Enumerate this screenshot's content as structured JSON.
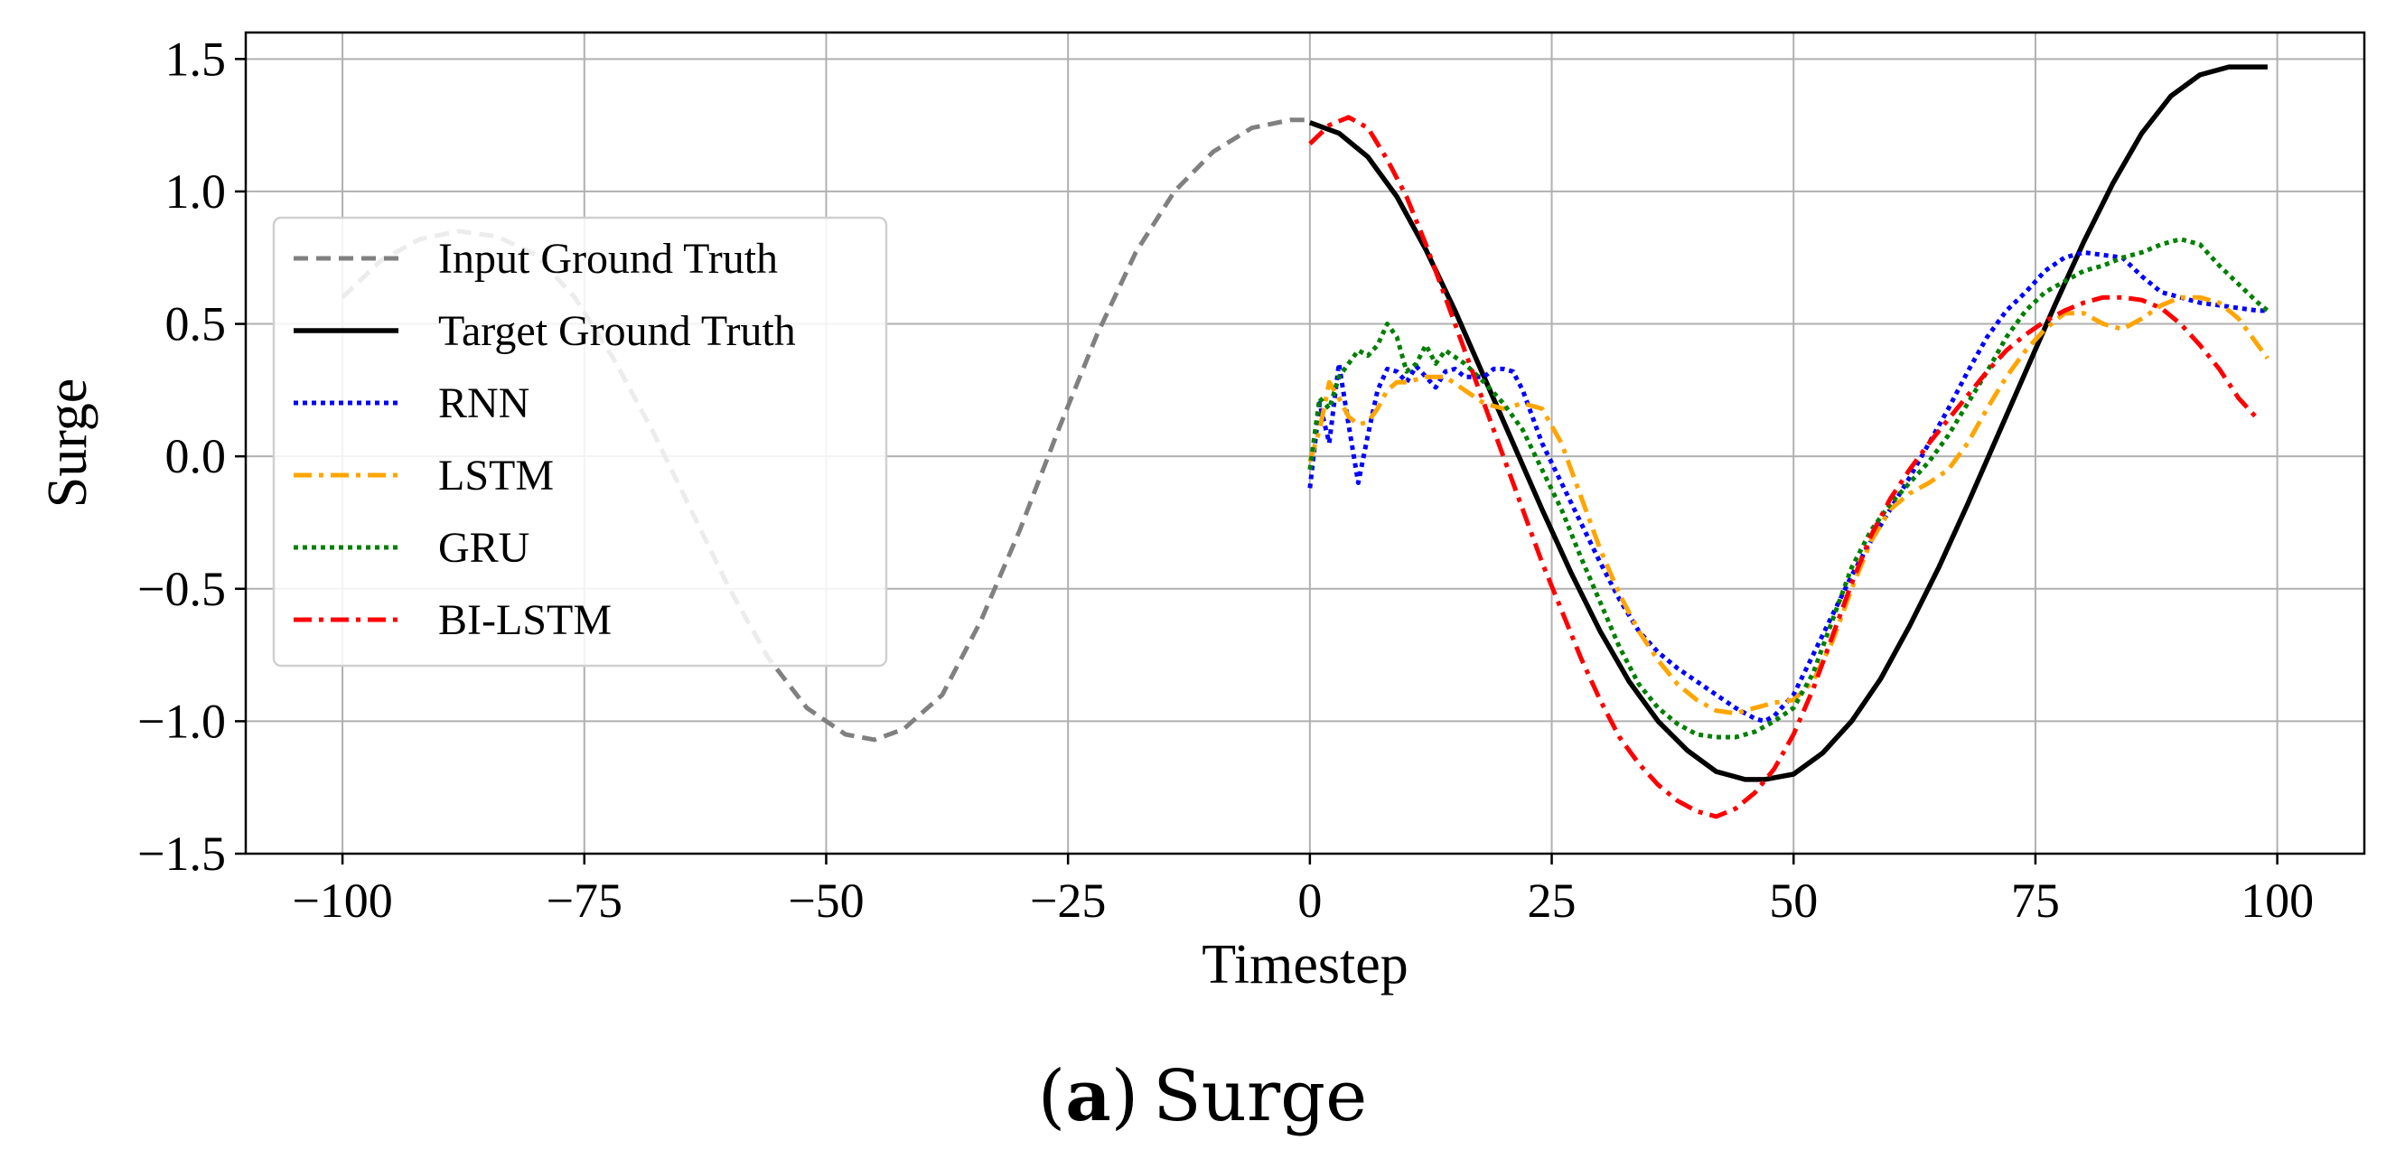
{
  "chart_data": {
    "type": "line",
    "xlabel": "Timestep",
    "ylabel": "Surge",
    "xlim": [
      -110,
      109
    ],
    "ylim": [
      -1.5,
      1.6
    ],
    "xticks": [
      -100,
      -75,
      -50,
      -25,
      0,
      25,
      50,
      75,
      100
    ],
    "yticks": [
      -1.5,
      -1.0,
      -0.5,
      0.0,
      0.5,
      1.0,
      1.5
    ],
    "grid": true,
    "legend_position": "center-left",
    "series": [
      {
        "name": "Input Ground Truth",
        "color": "#808080",
        "style": "dashed",
        "x": [
          -100,
          -96,
          -92,
          -88,
          -84,
          -80,
          -76,
          -72,
          -68,
          -64,
          -60,
          -56,
          -52,
          -48,
          -45,
          -42,
          -38,
          -34,
          -30,
          -26,
          -22,
          -18,
          -14,
          -10,
          -6,
          -2,
          0
        ],
        "y": [
          0.6,
          0.74,
          0.82,
          0.85,
          0.83,
          0.76,
          0.6,
          0.37,
          0.1,
          -0.2,
          -0.5,
          -0.76,
          -0.95,
          -1.05,
          -1.07,
          -1.03,
          -0.9,
          -0.62,
          -0.28,
          0.1,
          0.46,
          0.77,
          1.0,
          1.15,
          1.24,
          1.27,
          1.27
        ]
      },
      {
        "name": "Target Ground Truth",
        "color": "#000000",
        "style": "solid",
        "x": [
          0,
          3,
          6,
          9,
          12,
          15,
          18,
          21,
          24,
          27,
          30,
          33,
          36,
          39,
          42,
          45,
          47,
          50,
          53,
          56,
          59,
          62,
          65,
          68,
          71,
          74,
          77,
          80,
          83,
          86,
          89,
          92,
          95,
          98,
          99
        ],
        "y": [
          1.26,
          1.22,
          1.13,
          0.98,
          0.78,
          0.55,
          0.3,
          0.05,
          -0.2,
          -0.44,
          -0.66,
          -0.85,
          -1.0,
          -1.11,
          -1.19,
          -1.22,
          -1.22,
          -1.2,
          -1.12,
          -1.0,
          -0.84,
          -0.64,
          -0.42,
          -0.18,
          0.07,
          0.32,
          0.57,
          0.81,
          1.03,
          1.22,
          1.36,
          1.44,
          1.47,
          1.47,
          1.47
        ]
      },
      {
        "name": "RNN",
        "color": "#0000ff",
        "style": "dotted",
        "x": [
          0,
          1,
          2,
          3,
          4,
          5,
          6,
          7,
          8,
          9,
          10,
          11,
          12,
          13,
          14,
          15,
          16,
          17,
          18,
          19,
          20,
          21,
          22,
          23,
          24,
          26,
          28,
          30,
          32,
          34,
          36,
          38,
          40,
          42,
          44,
          46,
          47,
          48,
          50,
          52,
          54,
          56,
          58,
          60,
          62,
          64,
          66,
          68,
          70,
          72,
          74,
          76,
          78,
          80,
          82,
          84,
          86,
          88,
          90,
          92,
          94,
          96,
          98,
          99
        ],
        "y": [
          -0.12,
          0.2,
          0.05,
          0.35,
          0.12,
          -0.1,
          0.08,
          0.25,
          0.33,
          0.32,
          0.28,
          0.34,
          0.3,
          0.26,
          0.32,
          0.33,
          0.3,
          0.3,
          0.3,
          0.33,
          0.33,
          0.32,
          0.25,
          0.15,
          0.05,
          -0.1,
          -0.25,
          -0.4,
          -0.54,
          -0.66,
          -0.74,
          -0.8,
          -0.85,
          -0.9,
          -0.95,
          -0.99,
          -1.0,
          -0.98,
          -0.9,
          -0.75,
          -0.6,
          -0.45,
          -0.32,
          -0.2,
          -0.08,
          0.05,
          0.18,
          0.32,
          0.45,
          0.55,
          0.62,
          0.7,
          0.75,
          0.77,
          0.76,
          0.75,
          0.68,
          0.62,
          0.6,
          0.58,
          0.57,
          0.56,
          0.55,
          0.55
        ]
      },
      {
        "name": "LSTM",
        "color": "#ffa500",
        "style": "dashdot",
        "x": [
          0,
          1,
          2,
          3,
          4,
          5,
          6,
          7,
          8,
          9,
          10,
          12,
          14,
          16,
          18,
          20,
          22,
          24,
          26,
          28,
          30,
          32,
          34,
          36,
          38,
          40,
          42,
          44,
          46,
          48,
          50,
          52,
          54,
          56,
          58,
          60,
          62,
          64,
          66,
          68,
          70,
          72,
          74,
          76,
          78,
          80,
          82,
          84,
          86,
          88,
          90,
          92,
          94,
          96,
          98,
          99
        ],
        "y": [
          -0.02,
          0.1,
          0.28,
          0.22,
          0.15,
          0.12,
          0.13,
          0.18,
          0.25,
          0.28,
          0.28,
          0.3,
          0.3,
          0.25,
          0.2,
          0.18,
          0.2,
          0.18,
          0.05,
          -0.15,
          -0.35,
          -0.52,
          -0.66,
          -0.77,
          -0.86,
          -0.92,
          -0.96,
          -0.97,
          -0.95,
          -0.93,
          -0.92,
          -0.85,
          -0.7,
          -0.5,
          -0.32,
          -0.2,
          -0.14,
          -0.1,
          -0.05,
          0.05,
          0.18,
          0.3,
          0.4,
          0.48,
          0.54,
          0.54,
          0.5,
          0.48,
          0.52,
          0.57,
          0.6,
          0.6,
          0.58,
          0.52,
          0.42,
          0.37
        ]
      },
      {
        "name": "GRU",
        "color": "#008000",
        "style": "dotted",
        "x": [
          0,
          1,
          2,
          3,
          4,
          5,
          6,
          7,
          8,
          9,
          10,
          11,
          12,
          13,
          14,
          16,
          18,
          20,
          22,
          24,
          26,
          28,
          30,
          32,
          34,
          36,
          38,
          40,
          42,
          44,
          46,
          48,
          50,
          52,
          54,
          56,
          58,
          60,
          62,
          64,
          66,
          68,
          70,
          72,
          74,
          76,
          78,
          80,
          82,
          84,
          86,
          88,
          90,
          92,
          94,
          96,
          98,
          99
        ],
        "y": [
          -0.05,
          0.22,
          0.18,
          0.3,
          0.35,
          0.4,
          0.38,
          0.42,
          0.5,
          0.45,
          0.32,
          0.35,
          0.42,
          0.35,
          0.4,
          0.35,
          0.28,
          0.2,
          0.1,
          -0.05,
          -0.2,
          -0.38,
          -0.55,
          -0.72,
          -0.86,
          -0.95,
          -1.01,
          -1.05,
          -1.06,
          -1.06,
          -1.04,
          -1.0,
          -0.95,
          -0.82,
          -0.62,
          -0.42,
          -0.28,
          -0.18,
          -0.1,
          -0.02,
          0.08,
          0.2,
          0.32,
          0.45,
          0.55,
          0.62,
          0.66,
          0.7,
          0.72,
          0.75,
          0.77,
          0.8,
          0.82,
          0.8,
          0.72,
          0.65,
          0.58,
          0.55
        ]
      },
      {
        "name": "BI-LSTM",
        "color": "#ff0000",
        "style": "dashdot",
        "x": [
          0,
          2,
          4,
          6,
          8,
          10,
          12,
          14,
          16,
          18,
          20,
          22,
          24,
          26,
          28,
          30,
          32,
          34,
          36,
          38,
          40,
          42,
          44,
          46,
          48,
          50,
          52,
          54,
          56,
          58,
          60,
          62,
          64,
          66,
          68,
          70,
          72,
          74,
          76,
          78,
          80,
          82,
          84,
          86,
          88,
          90,
          92,
          94,
          96,
          98
        ],
        "y": [
          1.18,
          1.25,
          1.28,
          1.24,
          1.12,
          0.98,
          0.8,
          0.6,
          0.4,
          0.2,
          0.0,
          -0.2,
          -0.4,
          -0.58,
          -0.76,
          -0.92,
          -1.06,
          -1.16,
          -1.24,
          -1.3,
          -1.34,
          -1.36,
          -1.33,
          -1.27,
          -1.18,
          -1.05,
          -0.88,
          -0.68,
          -0.48,
          -0.3,
          -0.16,
          -0.05,
          0.05,
          0.14,
          0.23,
          0.32,
          0.4,
          0.46,
          0.51,
          0.55,
          0.58,
          0.6,
          0.6,
          0.59,
          0.56,
          0.5,
          0.42,
          0.33,
          0.22,
          0.14
        ]
      }
    ]
  },
  "caption": {
    "letter": "(a)",
    "text": "Surge",
    "letter_paren_open": "(",
    "letter_char": "a",
    "letter_paren_close": ")"
  }
}
